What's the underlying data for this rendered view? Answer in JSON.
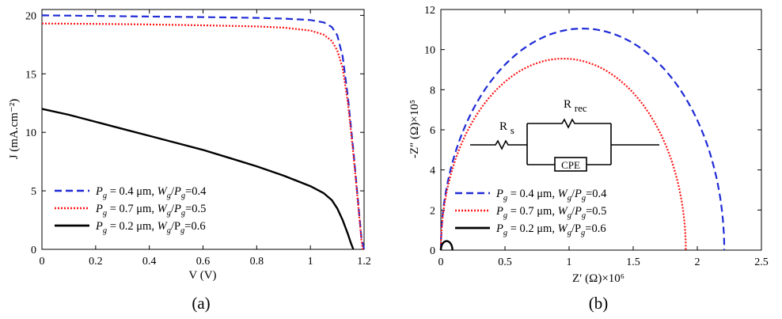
{
  "colors": {
    "series1": "#1f2bd6",
    "series2": "#ff1414",
    "series3": "#000000"
  },
  "chart_data": [
    {
      "type": "line",
      "panel_label": "(a)",
      "xlabel": "V (V)",
      "ylabel": "J (mA.cm⁻²)",
      "xlim": [
        0,
        1.2
      ],
      "ylim": [
        0,
        20.5
      ],
      "xticks": [
        "0",
        "0.2",
        "0.4",
        "0.6",
        "0.8",
        "1",
        "1.2"
      ],
      "yticks": [
        "0",
        "5",
        "10",
        "15",
        "20"
      ],
      "grid": false,
      "legend_position": "bottom-left",
      "series": [
        {
          "name": "Pg = 0.4 μm, Wg/Pg=0.4",
          "legend": {
            "p": "P",
            "p_sub": "g",
            "mid": " = 0.4 μm, ",
            "w": "W",
            "w_sub": "g",
            "slash": "/",
            "p2": "P",
            "p2_sub": "g",
            "tail": "=0.4"
          },
          "style": "dashed",
          "color_key": "series1",
          "x": [
            0,
            0.2,
            0.4,
            0.6,
            0.8,
            0.9,
            1.0,
            1.05,
            1.08,
            1.1,
            1.12,
            1.14,
            1.16,
            1.18,
            1.19,
            1.2
          ],
          "y": [
            20.0,
            19.95,
            19.9,
            19.85,
            19.78,
            19.72,
            19.6,
            19.4,
            19.0,
            18.3,
            16.5,
            13.0,
            8.5,
            3.5,
            1.0,
            0
          ]
        },
        {
          "name": "Pg = 0.7 μm, Wg/Pg=0.5",
          "legend": {
            "p": "P",
            "p_sub": "g",
            "mid": " = 0.7 μm, ",
            "w": "W",
            "w_sub": "g",
            "slash": "/",
            "p2": "P",
            "p2_sub": "g",
            "tail": "=0.5"
          },
          "style": "dotted",
          "color_key": "series2",
          "x": [
            0,
            0.2,
            0.4,
            0.6,
            0.8,
            0.9,
            1.0,
            1.05,
            1.08,
            1.1,
            1.12,
            1.14,
            1.16,
            1.18,
            1.19,
            1.195
          ],
          "y": [
            19.3,
            19.27,
            19.22,
            19.15,
            19.05,
            18.95,
            18.7,
            18.35,
            17.8,
            17.0,
            15.5,
            12.5,
            8.2,
            3.3,
            0.8,
            0
          ]
        },
        {
          "name": "Pg = 0.2 μm, Wg/Pg=0.6",
          "legend": {
            "p": "P",
            "p_sub": "g",
            "mid": " = 0.2 μm, ",
            "w": "W",
            "w_sub": "g",
            "slash": "/P",
            "p2": "",
            "p2_sub": "g",
            "tail": "=0.6"
          },
          "style": "solid",
          "color_key": "series3",
          "x": [
            0,
            0.1,
            0.2,
            0.3,
            0.4,
            0.5,
            0.6,
            0.7,
            0.8,
            0.9,
            1.0,
            1.05,
            1.08,
            1.1,
            1.12,
            1.14,
            1.15,
            1.16
          ],
          "y": [
            12.0,
            11.5,
            10.9,
            10.3,
            9.7,
            9.1,
            8.5,
            7.8,
            7.1,
            6.3,
            5.4,
            4.8,
            4.2,
            3.5,
            2.5,
            1.3,
            0.6,
            0
          ]
        }
      ]
    },
    {
      "type": "line",
      "panel_label": "(b)",
      "xlabel": "Z′ (Ω)×10⁶",
      "ylabel": "-Z″ (Ω)×10⁵",
      "xlim": [
        0,
        2.5
      ],
      "ylim": [
        0,
        12
      ],
      "xticks": [
        "0",
        "0.5",
        "1",
        "1.5",
        "2",
        "2.5"
      ],
      "yticks": [
        "0",
        "2",
        "4",
        "6",
        "8",
        "10",
        "12"
      ],
      "grid": false,
      "legend_position": "bottom-left",
      "inset": {
        "labels": [
          "Rs",
          "Rrec",
          "CPE"
        ]
      },
      "series": [
        {
          "name": "Pg = 0.4 μm, Wg/Pg=0.4",
          "legend": {
            "p": "P",
            "p_sub": "g",
            "mid": " = 0.4 μm, ",
            "w": "W",
            "w_sub": "g",
            "slash": "/",
            "p2": "P",
            "p2_sub": "g",
            "tail": "=0.4"
          },
          "style": "dashed",
          "color_key": "series1",
          "center": 1.105,
          "radius_x": 1.105,
          "peak": 11.05
        },
        {
          "name": "Pg = 0.7 μm, Wg/Pg=0.5",
          "legend": {
            "p": "P",
            "p_sub": "g",
            "mid": " = 0.7 μm, ",
            "w": "W",
            "w_sub": "g",
            "slash": "/",
            "p2": "P",
            "p2_sub": "g",
            "tail": "=0.5"
          },
          "style": "dotted",
          "color_key": "series2",
          "center": 0.955,
          "radius_x": 0.955,
          "peak": 9.55
        },
        {
          "name": "Pg = 0.2 μm, Wg/Pg=0.6",
          "legend": {
            "p": "P",
            "p_sub": "g",
            "mid": " = 0.2 μm, ",
            "w": "W",
            "w_sub": "g",
            "slash": "/P",
            "p2": "",
            "p2_sub": "g",
            "tail": "=0.6"
          },
          "style": "solid",
          "color_key": "series3",
          "center": 0.045,
          "radius_x": 0.045,
          "peak": 0.45
        }
      ]
    }
  ]
}
